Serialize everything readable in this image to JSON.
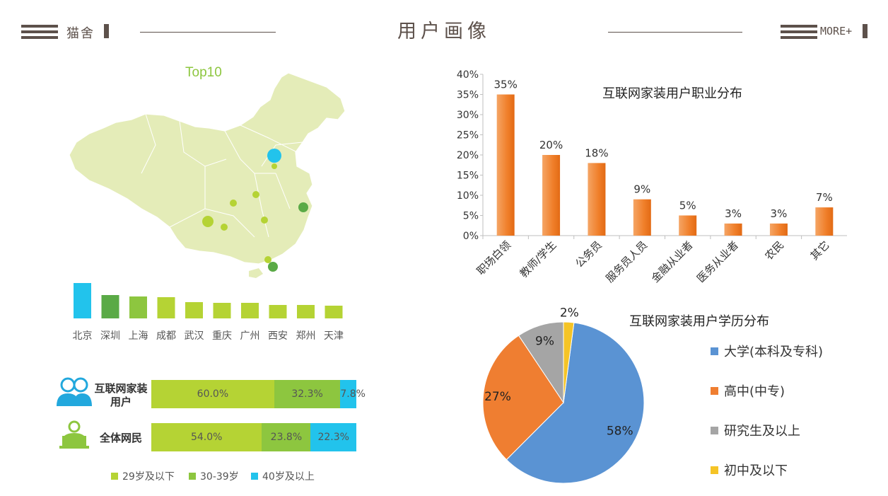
{
  "header": {
    "brand": "猫舍",
    "title": "用户画像",
    "more_label": "MORE+"
  },
  "colors": {
    "header_brown": "#5d514b",
    "map_fill": "#e4ecb8",
    "bar_orange": "#f07f2a",
    "green_light": "#b5d334",
    "green_mid": "#8dc63f",
    "green_dark": "#5aaa46",
    "cyan": "#22c3ec",
    "pie_blue": "#5a93d3",
    "pie_orange": "#ef7e31",
    "pie_gray": "#a5a5a5",
    "pie_yellow": "#f5c426"
  },
  "map_section": {
    "title": "Top10",
    "cities": [
      {
        "name": "北京",
        "value": 100,
        "color": "#22c3ec"
      },
      {
        "name": "深圳",
        "value": 66,
        "color": "#5aaa46"
      },
      {
        "name": "上海",
        "value": 62,
        "color": "#8dc63f"
      },
      {
        "name": "成都",
        "value": 60,
        "color": "#b5d334"
      },
      {
        "name": "武汉",
        "value": 46,
        "color": "#b5d334"
      },
      {
        "name": "重庆",
        "value": 44,
        "color": "#b5d334"
      },
      {
        "name": "广州",
        "value": 44,
        "color": "#b5d334"
      },
      {
        "name": "西安",
        "value": 38,
        "color": "#b5d334"
      },
      {
        "name": "郑州",
        "value": 38,
        "color": "#b5d334"
      },
      {
        "name": "天津",
        "value": 36,
        "color": "#b5d334"
      }
    ]
  },
  "age_distribution": {
    "rows": [
      {
        "label": "互联网家装用户",
        "values": [
          60.0,
          32.3,
          7.8
        ],
        "labels": [
          "60.0%",
          "32.3%",
          "7.8%"
        ]
      },
      {
        "label": "全体网民",
        "values": [
          54.0,
          23.8,
          22.3
        ],
        "labels": [
          "54.0%",
          "23.8%",
          "22.3%"
        ]
      }
    ],
    "legend": [
      {
        "label": "29岁及以下",
        "color": "#b5d334"
      },
      {
        "label": "30-39岁",
        "color": "#8dc63f"
      },
      {
        "label": "40岁及以上",
        "color": "#22c3ec"
      }
    ]
  },
  "chart_data": [
    {
      "type": "bar",
      "title": "互联网家装用户职业分布",
      "categories": [
        "职场白领",
        "教师/学生",
        "公务员",
        "服务员人员",
        "金融从业者",
        "医务从业者",
        "农民",
        "其它"
      ],
      "values": [
        35,
        20,
        18,
        9,
        5,
        3,
        3,
        7
      ],
      "value_labels": [
        "35%",
        "20%",
        "18%",
        "9%",
        "5%",
        "3%",
        "3%",
        "7%"
      ],
      "ylim": [
        0,
        40
      ],
      "yticks": [
        "0%",
        "5%",
        "10%",
        "15%",
        "20%",
        "25%",
        "30%",
        "35%",
        "40%"
      ],
      "grid": false
    },
    {
      "type": "pie",
      "title": "互联网家装用户学历分布",
      "slices": [
        {
          "label": "大学(本科及专科)",
          "value": 58,
          "value_label": "58%",
          "color": "#5a93d3"
        },
        {
          "label": "高中(中专)",
          "value": 27,
          "value_label": "27%",
          "color": "#ef7e31"
        },
        {
          "label": "研究生及以上",
          "value": 9,
          "value_label": "9%",
          "color": "#a5a5a5"
        },
        {
          "label": "初中及以下",
          "value": 2,
          "value_label": "2%",
          "color": "#f5c426"
        }
      ],
      "legend_position": "right"
    }
  ]
}
